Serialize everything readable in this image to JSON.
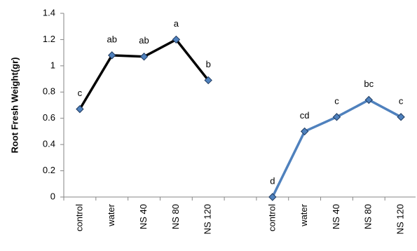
{
  "chart_data": {
    "type": "line",
    "y_label": "Root Fresh Weight(gr)",
    "categories": [
      "control",
      "water",
      "NS 40",
      "NS 80",
      "NS 120",
      null,
      "control",
      "water",
      "NS 40",
      "NS 80",
      "NS 120"
    ],
    "series": [
      {
        "color": "#000000",
        "marker_color": "#4f81bd",
        "values": [
          0.67,
          1.08,
          1.07,
          1.2,
          0.89,
          null,
          null,
          null,
          null,
          null,
          null
        ],
        "labels": [
          "c",
          "ab",
          "ab",
          "a",
          "b",
          null,
          null,
          null,
          null,
          null,
          null
        ]
      },
      {
        "color": "#4f81bd",
        "marker_color": "#4f81bd",
        "values": [
          null,
          null,
          null,
          null,
          null,
          null,
          0,
          0.5,
          0.61,
          0.74,
          0.61
        ],
        "labels": [
          null,
          null,
          null,
          null,
          null,
          null,
          "d",
          "cd",
          "c",
          "bc",
          "c"
        ]
      }
    ],
    "ylim": [
      0,
      1.4
    ],
    "yticks": [
      0,
      0.2,
      0.4,
      0.6,
      0.8,
      1,
      1.2,
      1.4
    ]
  }
}
